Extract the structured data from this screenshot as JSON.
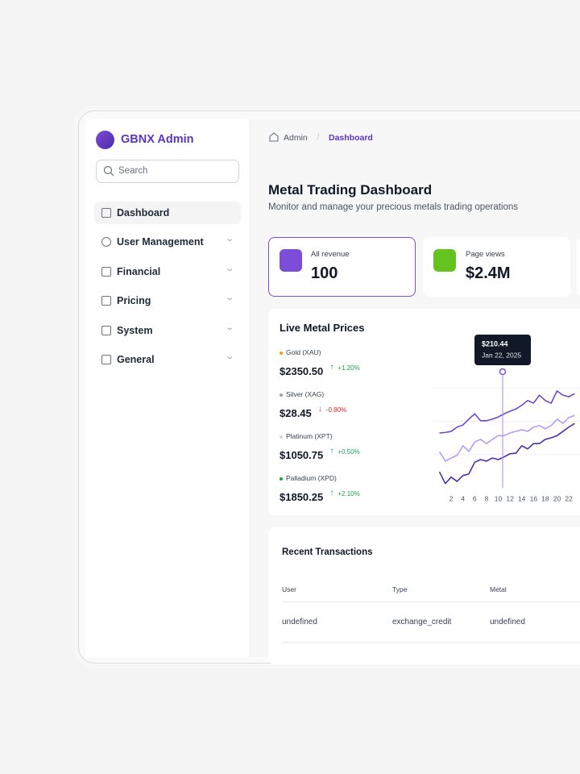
{
  "sidebar": {
    "brand": "GBNX Admin",
    "search_placeholder": "Search",
    "nav": [
      "Dashboard",
      "User Management",
      "Financial",
      "Pricing",
      "System",
      "General"
    ]
  },
  "breadcrumb": [
    "Admin",
    "Dashboard"
  ],
  "header": {
    "title": "Metal Trading Dashboard",
    "subtitle": "Monitor and manage your precious metals trading operations"
  },
  "stats": [
    {
      "label": "All revenue",
      "value": "100"
    },
    {
      "label": "Page views",
      "value": "$2.4M"
    }
  ],
  "prices": {
    "title": "Live Metal Prices",
    "items": [
      {
        "name": "Gold (XAU)",
        "price": "$2350.50",
        "change": "+1.20%",
        "color": "#f59e0b"
      },
      {
        "name": "Silver (XAG)",
        "price": "$28.45",
        "change": "-0.80%",
        "color": "#9ca3af"
      },
      {
        "name": "Platinum (XPT)",
        "price": "$1050.75",
        "change": "+0.50%",
        "color": "#d1d5db"
      },
      {
        "name": "Palladium (XPD)",
        "price": "$1850.25",
        "change": "+2.10%",
        "color": "#16a34a"
      }
    ]
  },
  "chart_data": {
    "type": "line",
    "x": [
      0,
      1,
      2,
      3,
      4,
      5,
      6,
      7,
      8,
      9,
      10,
      11,
      12,
      13,
      14,
      15,
      16,
      17,
      18,
      19,
      20,
      21,
      22,
      23
    ],
    "xlim": [
      0,
      24
    ],
    "ylim": [
      0,
      250
    ],
    "xticks": [
      2,
      4,
      6,
      8,
      10,
      12,
      14,
      16,
      18,
      20,
      22
    ],
    "series": [
      {
        "color": "#6d4ad0",
        "values": [
          103,
          104,
          106,
          114,
          118,
          129,
          139,
          126,
          126,
          129,
          133,
          139,
          144,
          148,
          155,
          164,
          159,
          174,
          164,
          159,
          182,
          174,
          171,
          177
        ]
      },
      {
        "color": "#b49cf5",
        "values": [
          68,
          50,
          56,
          61,
          79,
          68,
          86,
          91,
          83,
          91,
          98,
          98,
          103,
          106,
          109,
          106,
          114,
          117,
          111,
          117,
          129,
          121,
          132,
          136
        ]
      },
      {
        "color": "#4c32a8",
        "values": [
          30,
          8,
          20,
          12,
          23,
          26,
          48,
          53,
          50,
          56,
          53,
          58,
          64,
          65,
          79,
          73,
          83,
          83,
          91,
          94,
          98,
          106,
          114,
          121
        ]
      }
    ],
    "tooltip": {
      "value": "$210.44",
      "date": "Jan 22, 2025"
    }
  },
  "transactions": {
    "title": "Recent Transactions",
    "columns": [
      "User",
      "Type",
      "Metal"
    ],
    "rows": [
      [
        "undefined",
        "exchange_credit",
        "undefined"
      ]
    ]
  }
}
